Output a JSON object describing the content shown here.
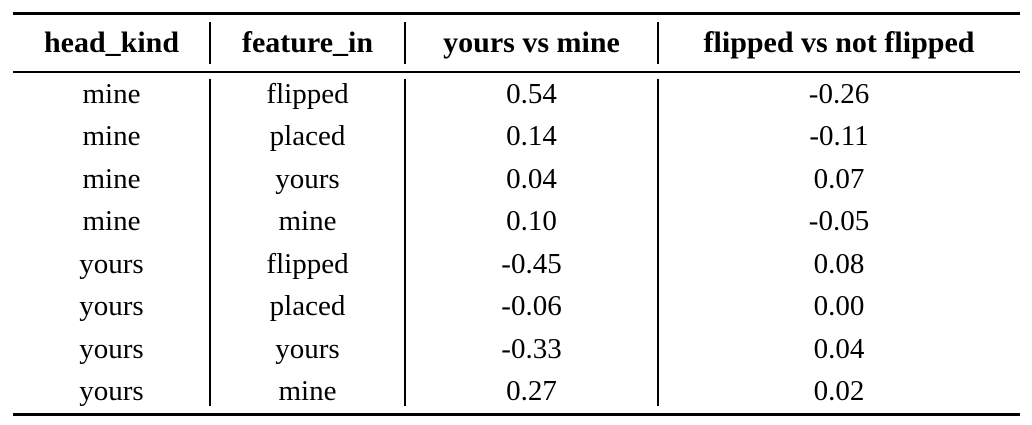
{
  "chart_data": {
    "type": "table",
    "title": "",
    "columns": [
      "head_kind",
      "feature_in",
      "yours vs mine",
      "flipped vs not flipped"
    ],
    "rows": [
      [
        "mine",
        "flipped",
        "0.54",
        "-0.26"
      ],
      [
        "mine",
        "placed",
        "0.14",
        "-0.11"
      ],
      [
        "mine",
        "yours",
        "0.04",
        "0.07"
      ],
      [
        "mine",
        "mine",
        "0.10",
        "-0.05"
      ],
      [
        "yours",
        "flipped",
        "-0.45",
        "0.08"
      ],
      [
        "yours",
        "placed",
        "-0.06",
        "0.00"
      ],
      [
        "yours",
        "yours",
        "-0.33",
        "0.04"
      ],
      [
        "yours",
        "mine",
        "0.27",
        "0.02"
      ]
    ],
    "layout": {
      "text_color": "#000000",
      "rule_color": "#000000",
      "background": "#ffffff",
      "top_rule": "thick",
      "header_rule": "thin",
      "bottom_rule": "thick",
      "column_separators": true,
      "cell_alignment": "center"
    }
  }
}
